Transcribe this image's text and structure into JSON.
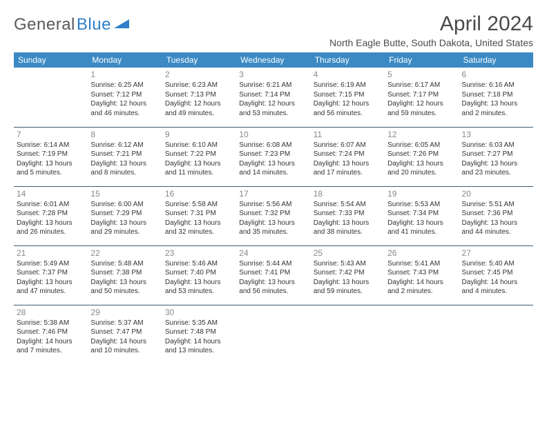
{
  "logo": {
    "text1": "General",
    "text2": "Blue"
  },
  "title": "April 2024",
  "subtitle": "North Eagle Butte, South Dakota, United States",
  "colors": {
    "header_bg": "#3b8ac4",
    "header_text": "#ffffff",
    "rule": "#3b5a75",
    "daynum": "#888888",
    "body_text": "#333333",
    "logo_gray": "#58595b",
    "logo_blue": "#2f7fc9"
  },
  "days_of_week": [
    "Sunday",
    "Monday",
    "Tuesday",
    "Wednesday",
    "Thursday",
    "Friday",
    "Saturday"
  ],
  "weeks": [
    [
      null,
      {
        "n": "1",
        "sr": "6:25 AM",
        "ss": "7:12 PM",
        "dl": "12 hours and 46 minutes."
      },
      {
        "n": "2",
        "sr": "6:23 AM",
        "ss": "7:13 PM",
        "dl": "12 hours and 49 minutes."
      },
      {
        "n": "3",
        "sr": "6:21 AM",
        "ss": "7:14 PM",
        "dl": "12 hours and 53 minutes."
      },
      {
        "n": "4",
        "sr": "6:19 AM",
        "ss": "7:15 PM",
        "dl": "12 hours and 56 minutes."
      },
      {
        "n": "5",
        "sr": "6:17 AM",
        "ss": "7:17 PM",
        "dl": "12 hours and 59 minutes."
      },
      {
        "n": "6",
        "sr": "6:16 AM",
        "ss": "7:18 PM",
        "dl": "13 hours and 2 minutes."
      }
    ],
    [
      {
        "n": "7",
        "sr": "6:14 AM",
        "ss": "7:19 PM",
        "dl": "13 hours and 5 minutes."
      },
      {
        "n": "8",
        "sr": "6:12 AM",
        "ss": "7:21 PM",
        "dl": "13 hours and 8 minutes."
      },
      {
        "n": "9",
        "sr": "6:10 AM",
        "ss": "7:22 PM",
        "dl": "13 hours and 11 minutes."
      },
      {
        "n": "10",
        "sr": "6:08 AM",
        "ss": "7:23 PM",
        "dl": "13 hours and 14 minutes."
      },
      {
        "n": "11",
        "sr": "6:07 AM",
        "ss": "7:24 PM",
        "dl": "13 hours and 17 minutes."
      },
      {
        "n": "12",
        "sr": "6:05 AM",
        "ss": "7:26 PM",
        "dl": "13 hours and 20 minutes."
      },
      {
        "n": "13",
        "sr": "6:03 AM",
        "ss": "7:27 PM",
        "dl": "13 hours and 23 minutes."
      }
    ],
    [
      {
        "n": "14",
        "sr": "6:01 AM",
        "ss": "7:28 PM",
        "dl": "13 hours and 26 minutes."
      },
      {
        "n": "15",
        "sr": "6:00 AM",
        "ss": "7:29 PM",
        "dl": "13 hours and 29 minutes."
      },
      {
        "n": "16",
        "sr": "5:58 AM",
        "ss": "7:31 PM",
        "dl": "13 hours and 32 minutes."
      },
      {
        "n": "17",
        "sr": "5:56 AM",
        "ss": "7:32 PM",
        "dl": "13 hours and 35 minutes."
      },
      {
        "n": "18",
        "sr": "5:54 AM",
        "ss": "7:33 PM",
        "dl": "13 hours and 38 minutes."
      },
      {
        "n": "19",
        "sr": "5:53 AM",
        "ss": "7:34 PM",
        "dl": "13 hours and 41 minutes."
      },
      {
        "n": "20",
        "sr": "5:51 AM",
        "ss": "7:36 PM",
        "dl": "13 hours and 44 minutes."
      }
    ],
    [
      {
        "n": "21",
        "sr": "5:49 AM",
        "ss": "7:37 PM",
        "dl": "13 hours and 47 minutes."
      },
      {
        "n": "22",
        "sr": "5:48 AM",
        "ss": "7:38 PM",
        "dl": "13 hours and 50 minutes."
      },
      {
        "n": "23",
        "sr": "5:46 AM",
        "ss": "7:40 PM",
        "dl": "13 hours and 53 minutes."
      },
      {
        "n": "24",
        "sr": "5:44 AM",
        "ss": "7:41 PM",
        "dl": "13 hours and 56 minutes."
      },
      {
        "n": "25",
        "sr": "5:43 AM",
        "ss": "7:42 PM",
        "dl": "13 hours and 59 minutes."
      },
      {
        "n": "26",
        "sr": "5:41 AM",
        "ss": "7:43 PM",
        "dl": "14 hours and 2 minutes."
      },
      {
        "n": "27",
        "sr": "5:40 AM",
        "ss": "7:45 PM",
        "dl": "14 hours and 4 minutes."
      }
    ],
    [
      {
        "n": "28",
        "sr": "5:38 AM",
        "ss": "7:46 PM",
        "dl": "14 hours and 7 minutes."
      },
      {
        "n": "29",
        "sr": "5:37 AM",
        "ss": "7:47 PM",
        "dl": "14 hours and 10 minutes."
      },
      {
        "n": "30",
        "sr": "5:35 AM",
        "ss": "7:48 PM",
        "dl": "14 hours and 13 minutes."
      },
      null,
      null,
      null,
      null
    ]
  ],
  "labels": {
    "sunrise": "Sunrise: ",
    "sunset": "Sunset: ",
    "daylight": "Daylight: "
  }
}
